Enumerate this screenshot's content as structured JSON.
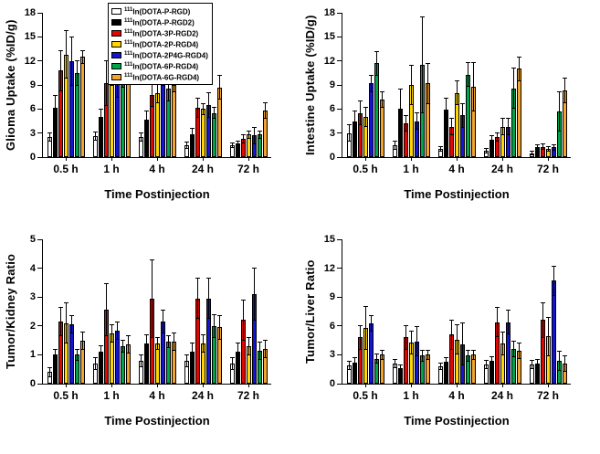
{
  "figure": {
    "xlabel": "Time Postinjection",
    "background": "#ffffff",
    "axis_color": "#000000"
  },
  "series_colors": [
    "#ffffff",
    "#000000",
    "#e10600",
    "#ffd400",
    "#1414d2",
    "#00a44a",
    "#f2a42e"
  ],
  "legend": {
    "position": "upper-center-of-first-panel",
    "items": [
      {
        "sup": "111",
        "label": "In(DOTA-P-RGD)"
      },
      {
        "sup": "111",
        "label": "In(DOTA-P-RGD2)"
      },
      {
        "sup": "111",
        "label": "In(DOTA-3P-RGD2)"
      },
      {
        "sup": "111",
        "label": "In(DOTA-2P-RGD4)"
      },
      {
        "sup": "111",
        "label": "In(DOTA-2P4G-RGD4)"
      },
      {
        "sup": "111",
        "label": "In(DOTA-6P-RGD4)"
      },
      {
        "sup": "111",
        "label": "In(DOTA-6G-RGD4)"
      }
    ]
  },
  "chart_data": [
    {
      "type": "bar",
      "ylabel": "Glioma Uptake (%ID/g)",
      "xlabel": "Time Postinjection",
      "categories": [
        "0.5 h",
        "1 h",
        "4 h",
        "24 h",
        "72 h"
      ],
      "ylim": [
        0,
        18
      ],
      "yticks": [
        0,
        3,
        6,
        9,
        12,
        15,
        18
      ],
      "grid": false,
      "series": [
        {
          "name": "111In(DOTA-P-RGD)",
          "values": [
            2.5,
            2.6,
            2.5,
            1.5,
            1.5
          ],
          "errors": [
            0.5,
            0.5,
            0.5,
            0.4,
            0.3
          ]
        },
        {
          "name": "111In(DOTA-P-RGD2)",
          "values": [
            6.2,
            5.0,
            4.7,
            2.8,
            1.7
          ],
          "errors": [
            1.5,
            1.0,
            1.0,
            0.8,
            0.3
          ]
        },
        {
          "name": "111In(DOTA-3P-RGD2)",
          "values": [
            10.8,
            9.2,
            7.8,
            6.1,
            2.3
          ],
          "errors": [
            2.5,
            2.8,
            1.5,
            1.2,
            0.5
          ]
        },
        {
          "name": "111In(DOTA-2P-RGD4)",
          "values": [
            12.8,
            10.5,
            8.0,
            6.0,
            2.8
          ],
          "errors": [
            3.0,
            1.5,
            1.2,
            0.7,
            0.5
          ]
        },
        {
          "name": "111In(DOTA-2P4G-RGD4)",
          "values": [
            12.0,
            10.0,
            9.5,
            6.5,
            2.7
          ],
          "errors": [
            3.0,
            2.5,
            0.5,
            1.5,
            1.0
          ]
        },
        {
          "name": "111In(DOTA-6P-RGD4)",
          "values": [
            10.5,
            10.2,
            8.5,
            5.5,
            2.8
          ],
          "errors": [
            1.5,
            1.5,
            1.5,
            0.7,
            0.5
          ]
        },
        {
          "name": "111In(DOTA-6G-RGD4)",
          "values": [
            12.5,
            11.5,
            9.0,
            8.7,
            5.8
          ],
          "errors": [
            0.8,
            0.8,
            0.8,
            1.5,
            1.0
          ]
        }
      ]
    },
    {
      "type": "bar",
      "ylabel": "Intestine Uptake (%ID/g)",
      "xlabel": "Time Postinjection",
      "categories": [
        "0.5 h",
        "1 h",
        "4 h",
        "24 h",
        "72 h"
      ],
      "ylim": [
        0,
        18
      ],
      "yticks": [
        0,
        3,
        6,
        9,
        12,
        15,
        18
      ],
      "grid": false,
      "series": [
        {
          "name": "111In(DOTA-P-RGD)",
          "values": [
            3.0,
            1.5,
            1.0,
            0.8,
            0.5
          ],
          "errors": [
            1.0,
            0.5,
            0.3,
            0.3,
            0.2
          ]
        },
        {
          "name": "111In(DOTA-P-RGD2)",
          "values": [
            4.5,
            6.0,
            5.9,
            2.2,
            1.2
          ],
          "errors": [
            1.2,
            2.5,
            1.5,
            0.5,
            0.3
          ]
        },
        {
          "name": "111In(DOTA-3P-RGD2)",
          "values": [
            5.5,
            4.2,
            3.8,
            2.5,
            1.3
          ],
          "errors": [
            1.5,
            1.0,
            1.0,
            0.5,
            0.3
          ]
        },
        {
          "name": "111In(DOTA-2P-RGD4)",
          "values": [
            5.0,
            9.0,
            8.0,
            3.8,
            1.0
          ],
          "errors": [
            1.2,
            2.5,
            1.5,
            1.0,
            0.3
          ]
        },
        {
          "name": "111In(DOTA-2P4G-RGD4)",
          "values": [
            9.2,
            4.5,
            5.2,
            3.8,
            1.2
          ],
          "errors": [
            1.0,
            1.0,
            1.5,
            1.0,
            0.3
          ]
        },
        {
          "name": "111In(DOTA-6P-RGD4)",
          "values": [
            11.7,
            11.5,
            10.3,
            8.6,
            5.7
          ],
          "errors": [
            1.5,
            6.0,
            1.5,
            2.5,
            2.5
          ]
        },
        {
          "name": "111In(DOTA-6G-RGD4)",
          "values": [
            7.2,
            9.2,
            8.8,
            11.0,
            8.3
          ],
          "errors": [
            1.0,
            2.5,
            3.0,
            1.5,
            1.5
          ]
        }
      ]
    },
    {
      "type": "bar",
      "ylabel": "Tumor/Kidney Ratio",
      "xlabel": "Time Postinjection",
      "categories": [
        "0.5 h",
        "1 h",
        "4 h",
        "24 h",
        "72 h"
      ],
      "ylim": [
        0,
        5
      ],
      "yticks": [
        0,
        1,
        2,
        3,
        4,
        5
      ],
      "grid": false,
      "series": [
        {
          "name": "111In(DOTA-P-RGD)",
          "values": [
            0.4,
            0.7,
            0.8,
            0.8,
            0.7
          ],
          "errors": [
            0.15,
            0.2,
            0.2,
            0.2,
            0.2
          ]
        },
        {
          "name": "111In(DOTA-P-RGD2)",
          "values": [
            1.0,
            1.1,
            1.4,
            1.1,
            1.1
          ],
          "errors": [
            0.2,
            0.2,
            0.3,
            0.3,
            0.3
          ]
        },
        {
          "name": "111In(DOTA-3P-RGD2)",
          "values": [
            2.15,
            2.55,
            2.95,
            2.95,
            2.2
          ],
          "errors": [
            0.5,
            0.9,
            1.35,
            0.7,
            0.7
          ]
        },
        {
          "name": "111In(DOTA-2P-RGD4)",
          "values": [
            2.1,
            1.75,
            1.4,
            1.4,
            1.3
          ],
          "errors": [
            0.7,
            0.3,
            0.2,
            0.3,
            0.3
          ]
        },
        {
          "name": "111In(DOTA-2P4G-RGD4)",
          "values": [
            2.05,
            1.85,
            2.15,
            2.95,
            3.1
          ],
          "errors": [
            0.3,
            0.3,
            0.4,
            0.7,
            0.9
          ]
        },
        {
          "name": "111In(DOTA-6P-RGD4)",
          "values": [
            1.0,
            1.3,
            1.45,
            2.0,
            1.15
          ],
          "errors": [
            0.2,
            0.2,
            0.2,
            0.4,
            0.3
          ]
        },
        {
          "name": "111In(DOTA-6G-RGD4)",
          "values": [
            1.5,
            1.35,
            1.45,
            1.95,
            1.2
          ],
          "errors": [
            0.3,
            0.3,
            0.3,
            0.4,
            0.3
          ]
        }
      ]
    },
    {
      "type": "bar",
      "ylabel": "Tumor/Liver Ratio",
      "xlabel": "Time Postinjection",
      "categories": [
        "0.5 h",
        "1 h",
        "4 h",
        "24 h",
        "72 h"
      ],
      "ylim": [
        0,
        15
      ],
      "yticks": [
        0,
        3,
        6,
        9,
        12,
        15
      ],
      "grid": false,
      "series": [
        {
          "name": "111In(DOTA-P-RGD)",
          "values": [
            1.9,
            2.1,
            1.8,
            2.0,
            2.0
          ],
          "errors": [
            0.4,
            0.4,
            0.3,
            0.4,
            0.4
          ]
        },
        {
          "name": "111In(DOTA-P-RGD2)",
          "values": [
            2.2,
            1.6,
            2.3,
            2.4,
            2.1
          ],
          "errors": [
            0.5,
            0.3,
            0.4,
            0.4,
            0.4
          ]
        },
        {
          "name": "111In(DOTA-3P-RGD2)",
          "values": [
            4.8,
            4.8,
            5.1,
            6.4,
            6.6
          ],
          "errors": [
            1.2,
            1.2,
            1.5,
            1.5,
            1.8
          ]
        },
        {
          "name": "111In(DOTA-2P-RGD4)",
          "values": [
            5.8,
            4.3,
            4.6,
            4.2,
            4.9
          ],
          "errors": [
            2.2,
            1.2,
            1.5,
            1.2,
            2.0
          ]
        },
        {
          "name": "111In(DOTA-2P4G-RGD4)",
          "values": [
            6.3,
            4.4,
            4.1,
            6.4,
            10.7
          ],
          "errors": [
            0.8,
            1.5,
            2.2,
            1.2,
            1.5
          ]
        },
        {
          "name": "111In(DOTA-6P-RGD4)",
          "values": [
            2.6,
            2.9,
            2.9,
            3.6,
            2.4
          ],
          "errors": [
            0.5,
            0.6,
            0.6,
            0.8,
            1.0
          ]
        },
        {
          "name": "111In(DOTA-6G-RGD4)",
          "values": [
            3.0,
            3.0,
            3.0,
            3.4,
            2.1
          ],
          "errors": [
            0.5,
            0.5,
            0.5,
            0.8,
            0.8
          ]
        }
      ]
    }
  ]
}
